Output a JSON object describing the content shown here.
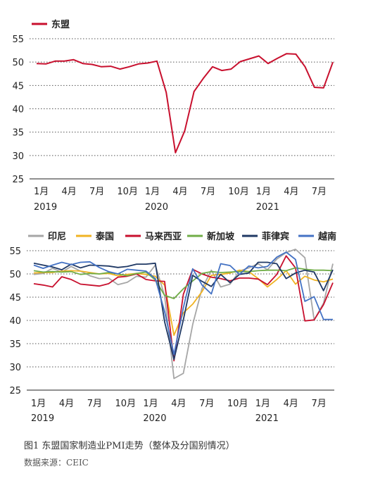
{
  "chart_data": [
    {
      "type": "line",
      "title": "",
      "xlabel": "",
      "ylabel": "",
      "ylim": [
        25,
        55
      ],
      "yticks": [
        25,
        30,
        35,
        40,
        45,
        50,
        55
      ],
      "grid": "horizontal dotted",
      "legend_position": "top-left",
      "x_tick_labels": [
        "1月",
        "4月",
        "7月",
        "10月",
        "1月",
        "4月",
        "7月",
        "10月",
        "1月",
        "4月",
        "7月"
      ],
      "year_labels": [
        "2019",
        "2020",
        "2021"
      ],
      "x": [
        "2019-01",
        "2019-02",
        "2019-03",
        "2019-04",
        "2019-05",
        "2019-06",
        "2019-07",
        "2019-08",
        "2019-09",
        "2019-10",
        "2019-11",
        "2019-12",
        "2020-01",
        "2020-02",
        "2020-03",
        "2020-04",
        "2020-05",
        "2020-06",
        "2020-07",
        "2020-08",
        "2020-09",
        "2020-10",
        "2020-11",
        "2020-12",
        "2021-01",
        "2021-02",
        "2021-03",
        "2021-04",
        "2021-05",
        "2021-06",
        "2021-07",
        "2021-08",
        "2021-09"
      ],
      "series": [
        {
          "name": "东盟",
          "color": "#c8102e",
          "values": [
            49.7,
            49.6,
            50.2,
            50.2,
            50.5,
            49.7,
            49.5,
            49.0,
            49.1,
            48.5,
            49.0,
            49.6,
            49.8,
            50.2,
            43.5,
            30.6,
            35.3,
            43.7,
            46.5,
            49.0,
            48.2,
            48.5,
            50.1,
            50.7,
            51.3,
            49.7,
            50.8,
            51.8,
            51.7,
            49.0,
            44.6,
            44.5,
            50.0
          ]
        }
      ]
    },
    {
      "type": "line",
      "title": "",
      "xlabel": "",
      "ylabel": "",
      "ylim": [
        25,
        55
      ],
      "yticks": [
        25,
        30,
        35,
        40,
        45,
        50,
        55
      ],
      "grid": "horizontal dotted",
      "legend_position": "top",
      "x_tick_labels": [
        "1月",
        "4月",
        "7月",
        "10月",
        "1月",
        "4月",
        "7月",
        "10月",
        "1月",
        "4月",
        "7月"
      ],
      "year_labels": [
        "2019",
        "2020",
        "2021"
      ],
      "x": [
        "2019-01",
        "2019-02",
        "2019-03",
        "2019-04",
        "2019-05",
        "2019-06",
        "2019-07",
        "2019-08",
        "2019-09",
        "2019-10",
        "2019-11",
        "2019-12",
        "2020-01",
        "2020-02",
        "2020-03",
        "2020-04",
        "2020-05",
        "2020-06",
        "2020-07",
        "2020-08",
        "2020-09",
        "2020-10",
        "2020-11",
        "2020-12",
        "2021-01",
        "2021-02",
        "2021-03",
        "2021-04",
        "2021-05",
        "2021-06",
        "2021-07",
        "2021-08",
        "2021-09"
      ],
      "series": [
        {
          "name": "印尼",
          "color": "#a6a6a6",
          "values": [
            49.9,
            50.1,
            51.2,
            50.4,
            51.6,
            50.6,
            49.6,
            49.0,
            49.1,
            47.7,
            48.2,
            49.5,
            49.3,
            51.9,
            45.3,
            27.5,
            28.6,
            39.1,
            46.9,
            50.8,
            47.2,
            47.8,
            50.6,
            51.3,
            52.2,
            50.9,
            53.2,
            54.6,
            55.3,
            53.5,
            40.1,
            43.7,
            52.2
          ]
        },
        {
          "name": "泰国",
          "color": "#f0b323",
          "values": [
            50.2,
            50.3,
            50.3,
            50.6,
            50.7,
            50.6,
            50.3,
            50.0,
            50.1,
            49.6,
            49.9,
            50.1,
            49.9,
            49.5,
            47.6,
            36.8,
            41.6,
            43.5,
            46.2,
            49.7,
            49.9,
            50.2,
            50.8,
            50.5,
            49.0,
            47.2,
            48.8,
            50.7,
            47.8,
            49.5,
            48.7,
            48.3,
            48.9
          ]
        },
        {
          "name": "马来西亚",
          "color": "#c8102e",
          "values": [
            47.9,
            47.6,
            47.2,
            49.4,
            48.8,
            47.8,
            47.6,
            47.4,
            47.9,
            49.3,
            49.5,
            50.0,
            48.8,
            48.5,
            48.4,
            31.3,
            45.6,
            51.0,
            50.0,
            49.3,
            49.0,
            48.5,
            49.1,
            49.1,
            48.9,
            47.7,
            49.9,
            53.9,
            51.3,
            39.9,
            40.1,
            43.4,
            48.1
          ]
        },
        {
          "name": "新加坡",
          "color": "#70ad47",
          "values": [
            50.7,
            50.4,
            50.5,
            50.4,
            50.5,
            49.9,
            50.1,
            50.0,
            50.3,
            50.0,
            49.6,
            50.1,
            50.4,
            48.7,
            45.4,
            44.7,
            46.8,
            48.5,
            50.1,
            50.5,
            50.3,
            50.4,
            50.5,
            50.5,
            50.7,
            50.8,
            50.8,
            50.7,
            51.3,
            51.0,
            50.8,
            50.8,
            50.7
          ]
        },
        {
          "name": "菲律宾",
          "color": "#1f3864",
          "values": [
            52.3,
            51.9,
            51.5,
            50.9,
            52.1,
            51.3,
            51.9,
            51.8,
            51.7,
            51.4,
            51.6,
            52.1,
            52.1,
            52.3,
            39.7,
            31.6,
            40.1,
            49.7,
            48.4,
            47.3,
            49.9,
            48.1,
            49.9,
            50.2,
            52.5,
            52.5,
            52.2,
            49.0,
            50.2,
            50.8,
            50.4,
            46.4,
            50.9
          ]
        },
        {
          "name": "越南",
          "color": "#4472c4",
          "values": [
            51.9,
            51.2,
            51.9,
            52.5,
            52.0,
            52.5,
            52.6,
            51.4,
            50.5,
            50.0,
            51.0,
            50.8,
            50.6,
            49.0,
            41.9,
            32.7,
            42.7,
            51.1,
            47.6,
            45.7,
            52.2,
            51.8,
            49.9,
            51.7,
            51.3,
            51.6,
            53.6,
            54.7,
            53.1,
            44.1,
            45.1,
            40.2,
            40.2
          ]
        }
      ]
    }
  ],
  "caption": {
    "figure": "图1 东盟国家制造业PMI走势（整体及分国别情况）",
    "source": "数据来源：CEIC"
  }
}
